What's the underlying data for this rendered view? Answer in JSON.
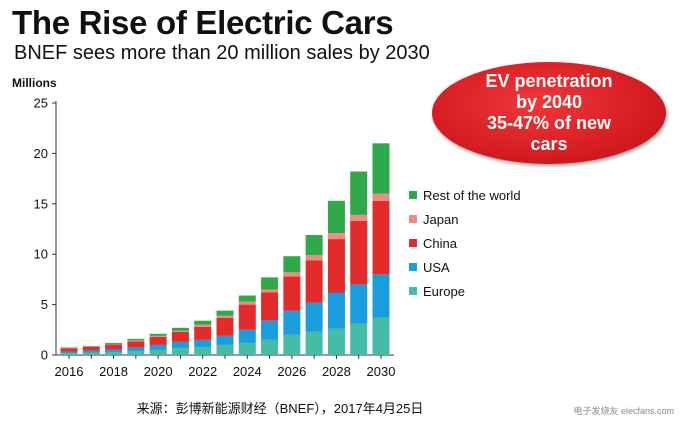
{
  "header": {
    "title": "The Rise of Electric Cars",
    "subtitle": "BNEF sees more than 20 million sales by 2030"
  },
  "callout": {
    "lines": [
      "EV penetration",
      "by 2040",
      "35-47% of new",
      "cars"
    ],
    "color": "#d61d22"
  },
  "source_note": "来源：彭博新能源财经（BNEF），2017年4月25日",
  "watermark": "电子发烧友 elecfans.com",
  "chart_data": {
    "type": "bar",
    "stacked": true,
    "ylabel": "Millions",
    "ylim": [
      0,
      25
    ],
    "yticks": [
      0,
      5,
      10,
      15,
      20,
      25
    ],
    "grid": false,
    "legend_position": "right",
    "categories": [
      "2016",
      "2017",
      "2018",
      "2019",
      "2020",
      "2021",
      "2022",
      "2023",
      "2024",
      "2025",
      "2026",
      "2027",
      "2028",
      "2029",
      "2030"
    ],
    "xtick_labels": [
      "2016",
      "2018",
      "2020",
      "2022",
      "2024",
      "2026",
      "2028",
      "2030"
    ],
    "series": [
      {
        "name": "Europe",
        "color": "#45bba8",
        "values": [
          0.2,
          0.25,
          0.3,
          0.4,
          0.5,
          0.7,
          0.8,
          1.0,
          1.2,
          1.5,
          2.0,
          2.3,
          2.6,
          3.1,
          3.7
        ]
      },
      {
        "name": "USA",
        "color": "#1a9ddd",
        "values": [
          0.15,
          0.2,
          0.25,
          0.35,
          0.5,
          0.6,
          0.7,
          0.9,
          1.3,
          1.9,
          2.4,
          2.9,
          3.6,
          3.9,
          4.3
        ]
      },
      {
        "name": "China",
        "color": "#e32b2b",
        "values": [
          0.3,
          0.35,
          0.5,
          0.6,
          0.8,
          1.0,
          1.3,
          1.8,
          2.5,
          2.8,
          3.4,
          4.2,
          5.3,
          6.3,
          7.3
        ]
      },
      {
        "name": "Japan",
        "color": "#f08a84",
        "values": [
          0.05,
          0.05,
          0.05,
          0.1,
          0.1,
          0.1,
          0.2,
          0.2,
          0.3,
          0.3,
          0.4,
          0.5,
          0.6,
          0.6,
          0.7
        ]
      },
      {
        "name": "Rest of the world",
        "color": "#2fa84a",
        "values": [
          0.05,
          0.05,
          0.1,
          0.15,
          0.2,
          0.3,
          0.4,
          0.5,
          0.6,
          1.2,
          1.6,
          2.0,
          3.2,
          4.3,
          5.0
        ]
      }
    ]
  }
}
